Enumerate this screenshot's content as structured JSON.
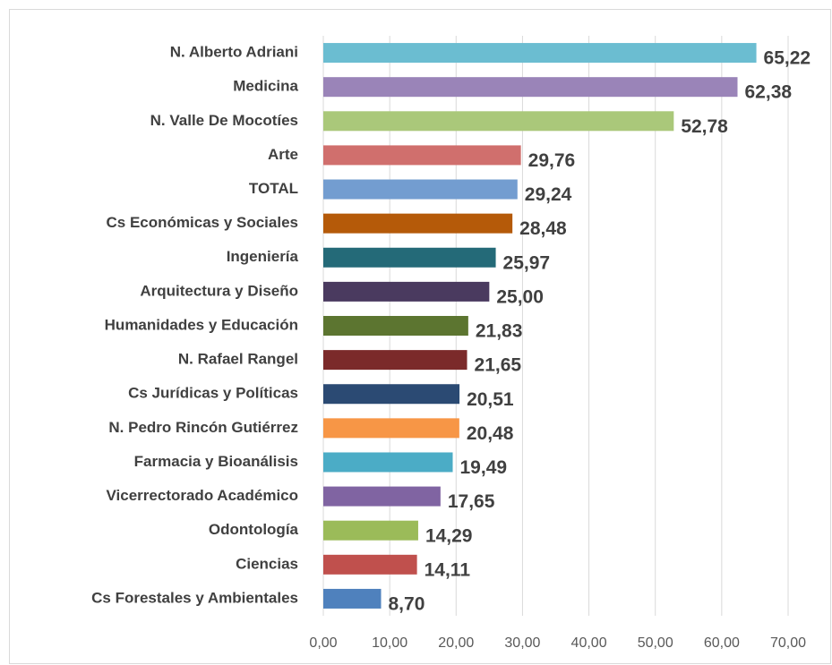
{
  "chart_data": {
    "type": "bar",
    "orientation": "horizontal",
    "categories": [
      "N. Alberto Adriani",
      "Medicina",
      "N. Valle De Mocotíes",
      "Arte",
      "TOTAL",
      "Cs Económicas y Sociales",
      "Ingeniería",
      "Arquitectura y Diseño",
      "Humanidades y Educación",
      "N. Rafael Rangel",
      "Cs Jurídicas y Políticas",
      "N. Pedro Rincón Gutiérrez",
      "Farmacia y Bioanálisis",
      "Vicerrectorado Académico",
      "Odontología",
      "Ciencias",
      "Cs Forestales y Ambientales"
    ],
    "values": [
      65.22,
      62.38,
      52.78,
      29.76,
      29.24,
      28.48,
      25.97,
      25.0,
      21.83,
      21.65,
      20.51,
      20.48,
      19.49,
      17.65,
      14.29,
      14.11,
      8.7
    ],
    "value_labels": [
      "65,22",
      "62,38",
      "52,78",
      "29,76",
      "29,24",
      "28,48",
      "25,97",
      "25,00",
      "21,83",
      "21,65",
      "20,51",
      "20,48",
      "19,49",
      "17,65",
      "14,29",
      "14,11",
      "8,70"
    ],
    "colors": [
      "#6bbdd1",
      "#9a84b8",
      "#aac87a",
      "#d06f6d",
      "#739dd0",
      "#b55a09",
      "#246a78",
      "#4a3a5f",
      "#5c7530",
      "#7b2a2a",
      "#2b4a73",
      "#f79646",
      "#4bacc6",
      "#8064a2",
      "#9bbb59",
      "#c0504d",
      "#4f81bd"
    ],
    "xlim": [
      0,
      70
    ],
    "xticks": [
      {
        "value": 0,
        "label": "0,00"
      },
      {
        "value": 10,
        "label": "10,00"
      },
      {
        "value": 20,
        "label": "20,00"
      },
      {
        "value": 30,
        "label": "30,00"
      },
      {
        "value": 40,
        "label": "40,00"
      },
      {
        "value": 50,
        "label": "50,00"
      },
      {
        "value": 60,
        "label": "60,00"
      },
      {
        "value": 70,
        "label": "70,00"
      }
    ],
    "grid": true
  }
}
